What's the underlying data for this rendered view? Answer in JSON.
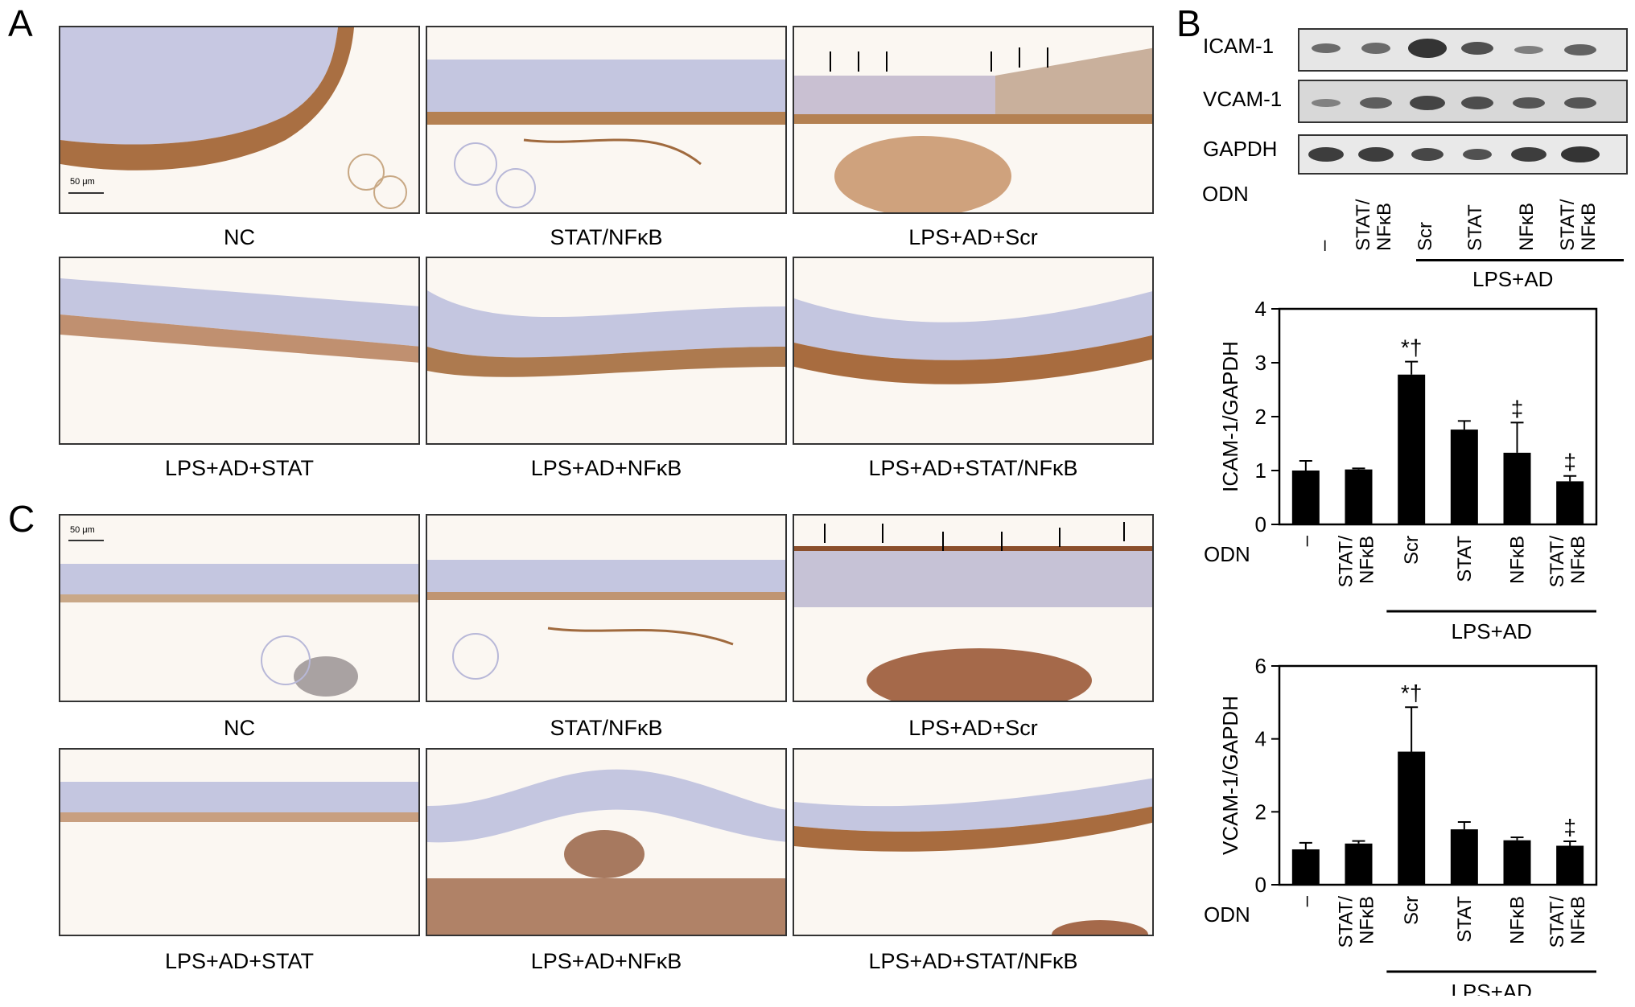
{
  "panels": {
    "A": {
      "label": "A",
      "captions": [
        "NC",
        "STAT/NFκB",
        "LPS+AD+Scr",
        "LPS+AD+STAT",
        "LPS+AD+NFκB",
        "LPS+AD+STAT/NFκB"
      ],
      "scale_bar": "50 μm"
    },
    "C": {
      "label": "C",
      "captions": [
        "NC",
        "STAT/NFκB",
        "LPS+AD+Scr",
        "LPS+AD+STAT",
        "LPS+AD+NFκB",
        "LPS+AD+STAT/NFκB"
      ],
      "scale_bar": "50 μm"
    },
    "B": {
      "label": "B",
      "blot_labels": [
        "ICAM-1",
        "VCAM-1",
        "GAPDH"
      ],
      "odn_label": "ODN",
      "lanes": [
        "–",
        "STAT/\nNFκB",
        "Scr",
        "STAT",
        "NFκB",
        "STAT/\nNFκB"
      ],
      "group_label": "LPS+AD"
    }
  },
  "chart_data": [
    {
      "type": "bar",
      "ylabel": "ICAM-1/GAPDH",
      "categories": [
        "–",
        "STAT/NFκB",
        "Scr",
        "STAT",
        "NFκB",
        "STAT/NFκB"
      ],
      "values": [
        1.0,
        1.02,
        2.78,
        1.76,
        1.33,
        0.8
      ],
      "errors": [
        0.18,
        0.02,
        0.24,
        0.16,
        0.56,
        0.1
      ],
      "annotations": [
        "",
        "",
        "*†",
        "",
        "‡",
        "‡"
      ],
      "ylim": [
        0,
        4
      ],
      "yticks": [
        "0",
        "1",
        "2",
        "3",
        "4"
      ],
      "xlabel_prefix": "ODN",
      "group_label": "LPS+AD"
    },
    {
      "type": "bar",
      "ylabel": "VCAM-1/GAPDH",
      "categories": [
        "–",
        "STAT/NFκB",
        "Scr",
        "STAT",
        "NFκB",
        "STAT/NFκB"
      ],
      "values": [
        0.97,
        1.13,
        3.65,
        1.52,
        1.22,
        1.07
      ],
      "errors": [
        0.18,
        0.07,
        1.22,
        0.2,
        0.08,
        0.12
      ],
      "annotations": [
        "",
        "",
        "*†",
        "",
        "",
        "‡"
      ],
      "ylim": [
        0,
        6
      ],
      "yticks": [
        "0",
        "2",
        "4",
        "6"
      ],
      "xlabel_prefix": "ODN",
      "group_label": "LPS+AD"
    }
  ]
}
